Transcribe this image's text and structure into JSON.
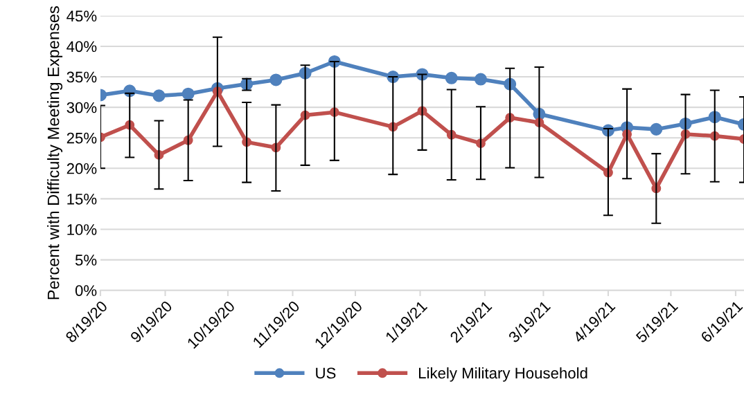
{
  "chart_data": {
    "type": "line",
    "ylabel": "Percent with Difficulty Meeting Expenses",
    "x": [
      "2020-08-19",
      "2020-09-02",
      "2020-09-16",
      "2020-09-30",
      "2020-10-14",
      "2020-10-28",
      "2020-11-11",
      "2020-11-25",
      "2020-12-09",
      "2021-01-06",
      "2021-01-20",
      "2021-02-03",
      "2021-02-17",
      "2021-03-03",
      "2021-03-17",
      "2021-04-19",
      "2021-04-28",
      "2021-05-12",
      "2021-05-26",
      "2021-06-09",
      "2021-06-23"
    ],
    "series": [
      {
        "name": "US",
        "color": "#4f81bd",
        "values": [
          32.0,
          32.7,
          31.9,
          32.2,
          33.1,
          33.8,
          34.5,
          35.6,
          37.5,
          35.0,
          35.4,
          34.8,
          34.6,
          33.8,
          28.9,
          26.2,
          26.7,
          26.4,
          27.3,
          28.4,
          27.2
        ],
        "errors": [
          null,
          null,
          null,
          null,
          null,
          [
            32.8,
            34.7
          ],
          null,
          null,
          null,
          null,
          null,
          null,
          null,
          null,
          null,
          null,
          null,
          null,
          null,
          null,
          null
        ]
      },
      {
        "name": "Likely Military Household",
        "color": "#c0504d",
        "values": [
          25.1,
          27.1,
          22.2,
          24.6,
          32.6,
          24.3,
          23.4,
          28.7,
          29.2,
          26.8,
          29.4,
          25.5,
          24.1,
          28.3,
          27.5,
          19.3,
          25.6,
          16.7,
          25.6,
          25.3,
          24.8
        ],
        "errors": [
          [
            20.0,
            30.3
          ],
          [
            21.8,
            32.3
          ],
          [
            16.6,
            27.8
          ],
          [
            18.0,
            31.2
          ],
          [
            23.6,
            41.5
          ],
          [
            17.7,
            30.8
          ],
          [
            16.3,
            30.4
          ],
          [
            20.5,
            36.9
          ],
          [
            21.3,
            37.5
          ],
          [
            19.0,
            35.0
          ],
          [
            23.0,
            35.4
          ],
          [
            18.1,
            32.9
          ],
          [
            18.2,
            30.1
          ],
          [
            20.1,
            36.4
          ],
          [
            18.5,
            36.6
          ],
          [
            12.3,
            26.5
          ],
          [
            18.3,
            33.0
          ],
          [
            11.0,
            22.4
          ],
          [
            19.1,
            32.1
          ],
          [
            17.8,
            32.8
          ],
          [
            17.7,
            31.7
          ]
        ]
      }
    ],
    "xlim": [
      "2020-08-19",
      "2021-06-23"
    ],
    "xticks": [
      {
        "value": "2020-08-19",
        "label": "8/19/20"
      },
      {
        "value": "2020-09-19",
        "label": "9/19/20"
      },
      {
        "value": "2020-10-19",
        "label": "10/19/20"
      },
      {
        "value": "2020-11-19",
        "label": "11/19/20"
      },
      {
        "value": "2020-12-19",
        "label": "12/19/20"
      },
      {
        "value": "2021-01-19",
        "label": "1/19/21"
      },
      {
        "value": "2021-02-19",
        "label": "2/19/21"
      },
      {
        "value": "2021-03-19",
        "label": "3/19/21"
      },
      {
        "value": "2021-04-19",
        "label": "4/19/21"
      },
      {
        "value": "2021-05-19",
        "label": "5/19/21"
      },
      {
        "value": "2021-06-19",
        "label": "6/19/21"
      }
    ],
    "ylim": [
      0,
      45
    ],
    "yticks": [
      {
        "value": 0,
        "label": "0%"
      },
      {
        "value": 5,
        "label": "5%"
      },
      {
        "value": 10,
        "label": "10%"
      },
      {
        "value": 15,
        "label": "15%"
      },
      {
        "value": 20,
        "label": "20%"
      },
      {
        "value": 25,
        "label": "25%"
      },
      {
        "value": 30,
        "label": "30%"
      },
      {
        "value": 35,
        "label": "35%"
      },
      {
        "value": 40,
        "label": "40%"
      },
      {
        "value": 45,
        "label": "45%"
      }
    ],
    "grid": "y",
    "legend": "bottom",
    "marker": "circle",
    "line_style": "solid"
  }
}
